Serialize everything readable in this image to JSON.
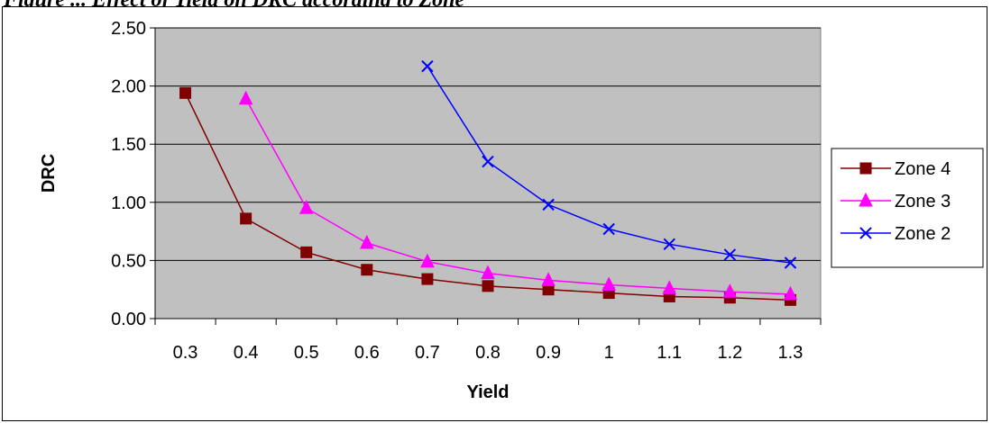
{
  "caption": "Figure ... Effect of Yield on DRC according to Zone",
  "chart_data": {
    "type": "line",
    "xlabel": "Yield",
    "ylabel": "DRC",
    "categories": [
      "0.3",
      "0.4",
      "0.5",
      "0.6",
      "0.7",
      "0.8",
      "0.9",
      "1",
      "1.1",
      "1.2",
      "1.3"
    ],
    "y_ticks": [
      "0.00",
      "0.50",
      "1.00",
      "1.50",
      "2.00",
      "2.50"
    ],
    "ylim": [
      0,
      2.5
    ],
    "grid": "horizontal",
    "legend_position": "right",
    "plot_background": "#c0c0c0",
    "series": [
      {
        "name": "Zone 4",
        "color": "#800000",
        "marker": "square",
        "values": [
          1.94,
          0.86,
          0.57,
          0.42,
          0.34,
          0.28,
          0.25,
          0.22,
          0.19,
          0.18,
          0.16
        ]
      },
      {
        "name": "Zone 3",
        "color": "#ff00ff",
        "marker": "triangle",
        "values": [
          null,
          1.89,
          0.95,
          0.65,
          0.49,
          0.39,
          0.33,
          0.29,
          0.26,
          0.23,
          0.21
        ]
      },
      {
        "name": "Zone 2",
        "color": "#0000ff",
        "marker": "x",
        "values": [
          null,
          null,
          null,
          null,
          2.17,
          1.35,
          0.98,
          0.77,
          0.64,
          0.55,
          0.48
        ]
      }
    ]
  }
}
